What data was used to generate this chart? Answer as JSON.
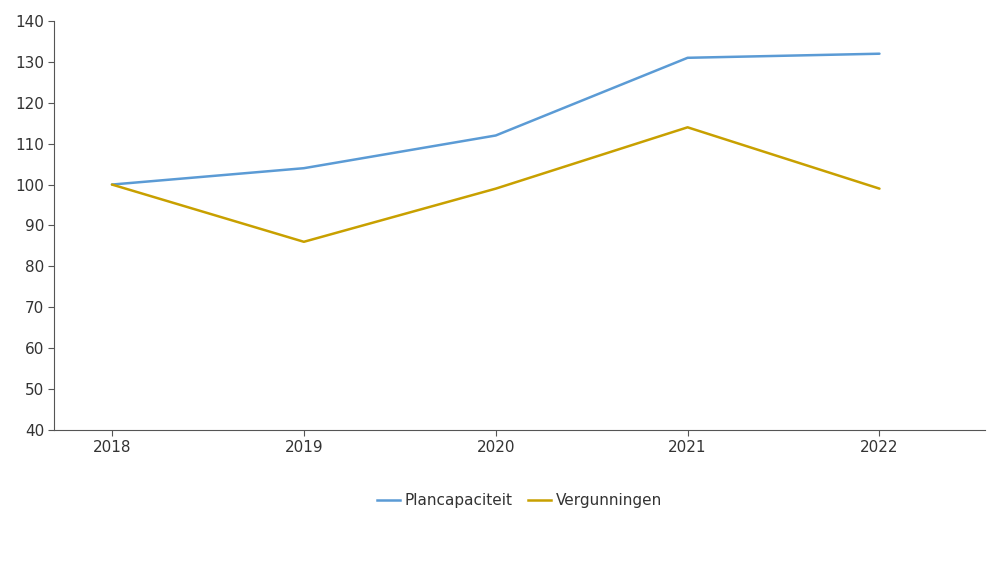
{
  "years": [
    2018,
    2019,
    2020,
    2021,
    2022
  ],
  "plancapaciteit": [
    100,
    104,
    112,
    131,
    132
  ],
  "vergunningen": [
    100,
    86,
    99,
    114,
    99
  ],
  "plancapaciteit_color": "#5B9BD5",
  "vergunningen_color": "#C8A000",
  "plancapaciteit_label": "Plancapaciteit",
  "vergunningen_label": "Vergunningen",
  "ylim": [
    40,
    140
  ],
  "yticks": [
    40,
    50,
    60,
    70,
    80,
    90,
    100,
    110,
    120,
    130,
    140
  ],
  "xticks": [
    2018,
    2019,
    2020,
    2021,
    2022
  ],
  "line_width": 1.8,
  "background_color": "#ffffff",
  "legend_fontsize": 11,
  "tick_fontsize": 11,
  "spine_color": "#555555",
  "xlim_left": 2017.7,
  "xlim_right": 2022.55
}
